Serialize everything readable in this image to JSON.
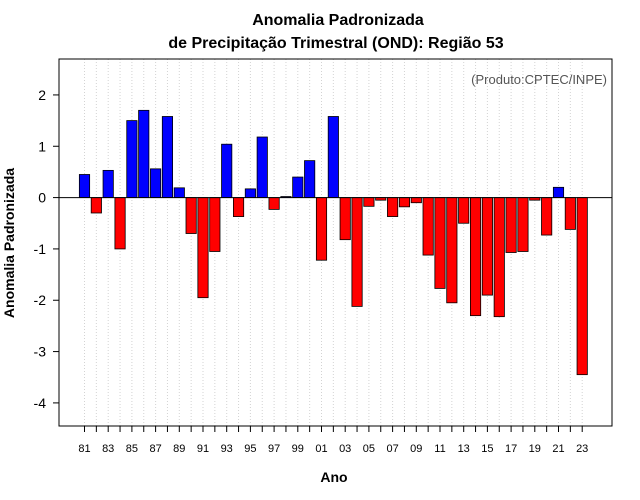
{
  "chart_data": {
    "type": "bar",
    "title_line1": "Anomalia Padronizada",
    "title_line2": "de Precipitação Trimestral (OND): Região 53",
    "xlabel": "Ano",
    "ylabel": "Anomalia Padronizada",
    "credit": "(Produto:CPTEC/INPE)",
    "ylim": [
      -4.45,
      2.7
    ],
    "yticks": [
      -4,
      -3,
      -2,
      -1,
      0,
      1,
      2
    ],
    "ytick_labels": [
      "-4",
      "-3",
      "-2",
      "-1",
      "0",
      "1",
      "2"
    ],
    "xtick_labels": [
      "81",
      "83",
      "85",
      "87",
      "89",
      "91",
      "93",
      "95",
      "97",
      "99",
      "01",
      "03",
      "05",
      "07",
      "09",
      "11",
      "13",
      "15",
      "17",
      "19",
      "21",
      "23"
    ],
    "categories": [
      "81",
      "82",
      "83",
      "84",
      "85",
      "86",
      "87",
      "88",
      "89",
      "90",
      "91",
      "92",
      "93",
      "94",
      "95",
      "96",
      "97",
      "98",
      "99",
      "00",
      "01",
      "02",
      "03",
      "04",
      "05",
      "06",
      "07",
      "08",
      "09",
      "10",
      "11",
      "12",
      "13",
      "14",
      "15",
      "16",
      "17",
      "18",
      "19",
      "20",
      "21",
      "22",
      "23"
    ],
    "values": [
      0.45,
      -0.3,
      0.53,
      -1.0,
      1.5,
      1.7,
      0.56,
      1.58,
      0.19,
      -0.7,
      -1.95,
      -1.05,
      1.04,
      -0.37,
      0.17,
      1.18,
      -0.23,
      0.02,
      0.4,
      0.72,
      -1.22,
      1.58,
      -0.82,
      -2.12,
      -0.17,
      -0.05,
      -0.37,
      -0.18,
      -0.1,
      -1.12,
      -1.77,
      -2.05,
      -0.5,
      -2.3,
      -1.9,
      -2.32,
      -1.07,
      -1.05,
      -0.05,
      -0.73,
      0.2,
      -0.62,
      -3.45
    ],
    "positive_color": "#0000ff",
    "negative_color": "#ff0000",
    "grid": "vertical-dotted"
  }
}
